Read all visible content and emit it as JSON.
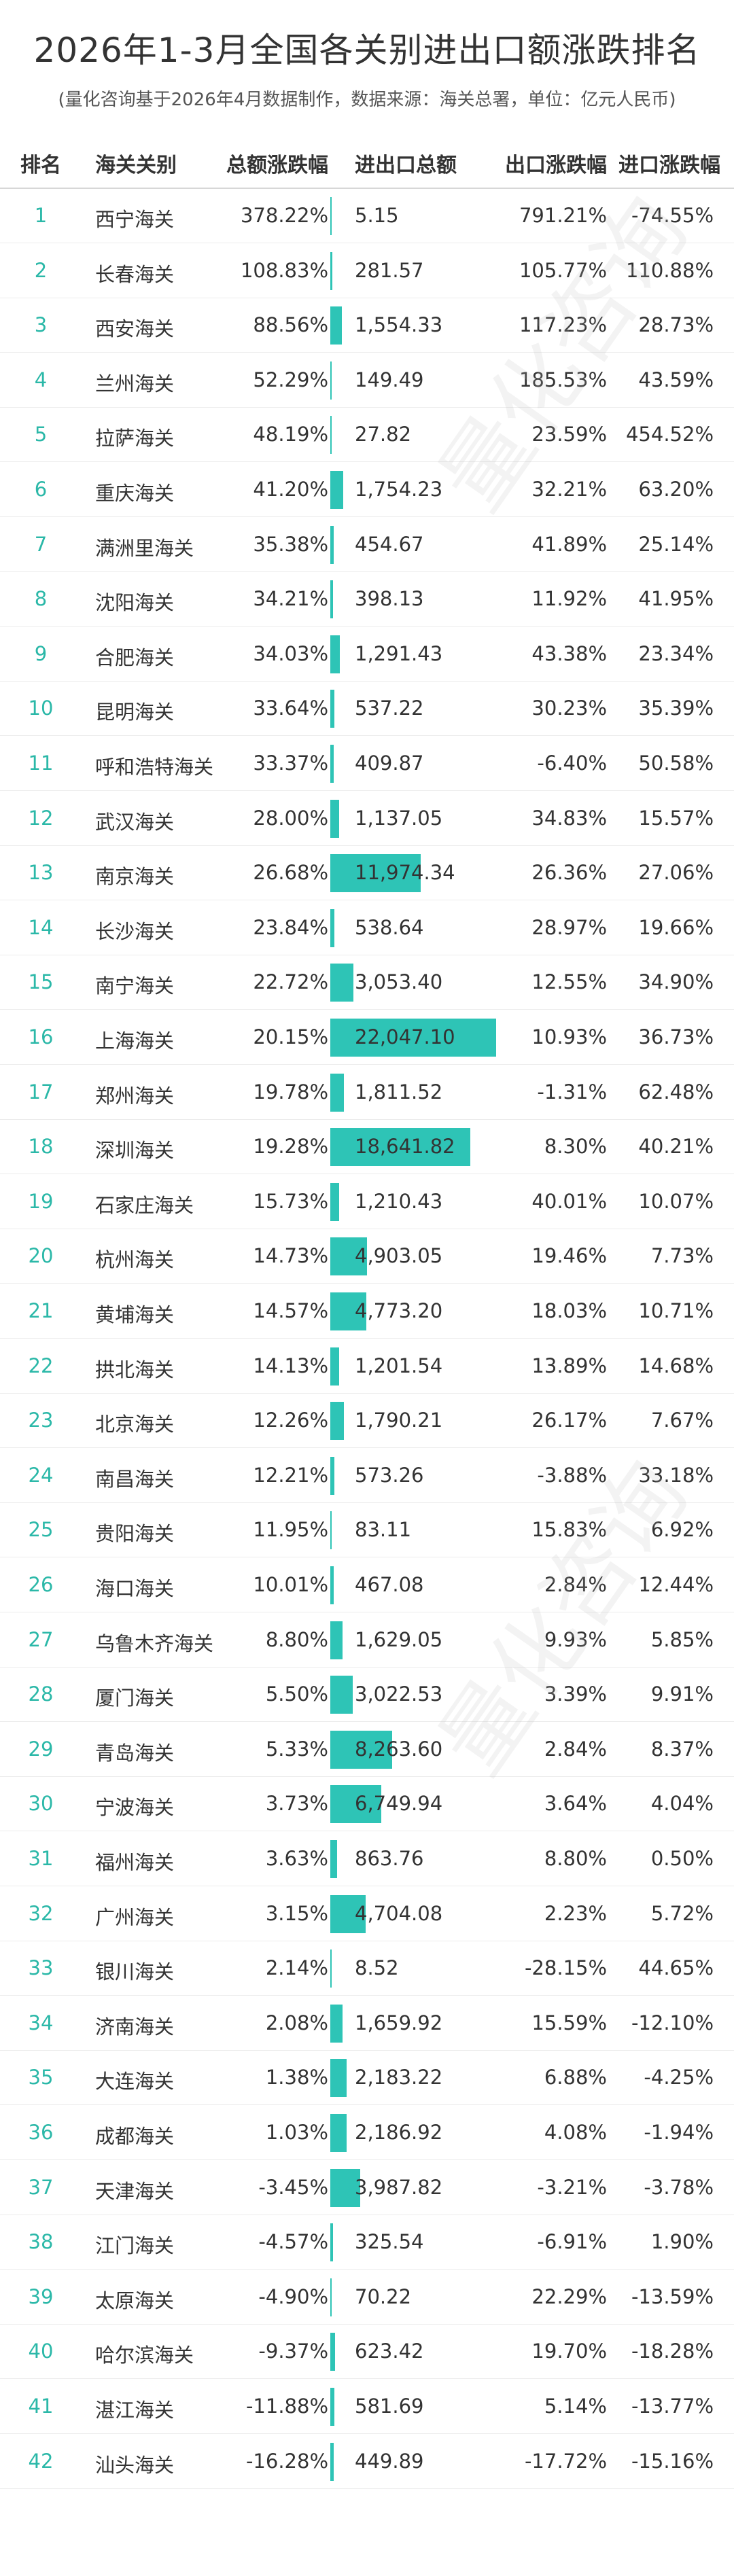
{
  "title": "2026年1-3月全国各关别进出口额涨跌排名",
  "subtitle": "(量化咨询基于2026年4月数据制作，数据来源：海关总署，单位：亿元人民币)",
  "watermark": "量化咨询",
  "colors": {
    "accent": "#2ec4b6",
    "rank": "#2bb8a8"
  },
  "chart_data": {
    "type": "table",
    "columns": [
      "排名",
      "海关关别",
      "总额涨跌幅",
      "进出口总额",
      "出口涨跌幅",
      "进口涨跌幅"
    ],
    "rows": [
      {
        "rank": "1",
        "customs": "西宁海关",
        "total_change": "378.22%",
        "trade_total": "5.15",
        "trade_value": 5.15,
        "export_change": "791.21%",
        "import_change": "-74.55%"
      },
      {
        "rank": "2",
        "customs": "长春海关",
        "total_change": "108.83%",
        "trade_total": "281.57",
        "trade_value": 281.57,
        "export_change": "105.77%",
        "import_change": "110.88%"
      },
      {
        "rank": "3",
        "customs": "西安海关",
        "total_change": "88.56%",
        "trade_total": "1,554.33",
        "trade_value": 1554.33,
        "export_change": "117.23%",
        "import_change": "28.73%"
      },
      {
        "rank": "4",
        "customs": "兰州海关",
        "total_change": "52.29%",
        "trade_total": "149.49",
        "trade_value": 149.49,
        "export_change": "185.53%",
        "import_change": "43.59%"
      },
      {
        "rank": "5",
        "customs": "拉萨海关",
        "total_change": "48.19%",
        "trade_total": "27.82",
        "trade_value": 27.82,
        "export_change": "23.59%",
        "import_change": "454.52%"
      },
      {
        "rank": "6",
        "customs": "重庆海关",
        "total_change": "41.20%",
        "trade_total": "1,754.23",
        "trade_value": 1754.23,
        "export_change": "32.21%",
        "import_change": "63.20%"
      },
      {
        "rank": "7",
        "customs": "满洲里海关",
        "total_change": "35.38%",
        "trade_total": "454.67",
        "trade_value": 454.67,
        "export_change": "41.89%",
        "import_change": "25.14%"
      },
      {
        "rank": "8",
        "customs": "沈阳海关",
        "total_change": "34.21%",
        "trade_total": "398.13",
        "trade_value": 398.13,
        "export_change": "11.92%",
        "import_change": "41.95%"
      },
      {
        "rank": "9",
        "customs": "合肥海关",
        "total_change": "34.03%",
        "trade_total": "1,291.43",
        "trade_value": 1291.43,
        "export_change": "43.38%",
        "import_change": "23.34%"
      },
      {
        "rank": "10",
        "customs": "昆明海关",
        "total_change": "33.64%",
        "trade_total": "537.22",
        "trade_value": 537.22,
        "export_change": "30.23%",
        "import_change": "35.39%"
      },
      {
        "rank": "11",
        "customs": "呼和浩特海关",
        "total_change": "33.37%",
        "trade_total": "409.87",
        "trade_value": 409.87,
        "export_change": "-6.40%",
        "import_change": "50.58%"
      },
      {
        "rank": "12",
        "customs": "武汉海关",
        "total_change": "28.00%",
        "trade_total": "1,137.05",
        "trade_value": 1137.05,
        "export_change": "34.83%",
        "import_change": "15.57%"
      },
      {
        "rank": "13",
        "customs": "南京海关",
        "total_change": "26.68%",
        "trade_total": "11,974.34",
        "trade_value": 11974.34,
        "export_change": "26.36%",
        "import_change": "27.06%"
      },
      {
        "rank": "14",
        "customs": "长沙海关",
        "total_change": "23.84%",
        "trade_total": "538.64",
        "trade_value": 538.64,
        "export_change": "28.97%",
        "import_change": "19.66%"
      },
      {
        "rank": "15",
        "customs": "南宁海关",
        "total_change": "22.72%",
        "trade_total": "3,053.40",
        "trade_value": 3053.4,
        "export_change": "12.55%",
        "import_change": "34.90%"
      },
      {
        "rank": "16",
        "customs": "上海海关",
        "total_change": "20.15%",
        "trade_total": "22,047.10",
        "trade_value": 22047.1,
        "export_change": "10.93%",
        "import_change": "36.73%"
      },
      {
        "rank": "17",
        "customs": "郑州海关",
        "total_change": "19.78%",
        "trade_total": "1,811.52",
        "trade_value": 1811.52,
        "export_change": "-1.31%",
        "import_change": "62.48%"
      },
      {
        "rank": "18",
        "customs": "深圳海关",
        "total_change": "19.28%",
        "trade_total": "18,641.82",
        "trade_value": 18641.82,
        "export_change": "8.30%",
        "import_change": "40.21%"
      },
      {
        "rank": "19",
        "customs": "石家庄海关",
        "total_change": "15.73%",
        "trade_total": "1,210.43",
        "trade_value": 1210.43,
        "export_change": "40.01%",
        "import_change": "10.07%"
      },
      {
        "rank": "20",
        "customs": "杭州海关",
        "total_change": "14.73%",
        "trade_total": "4,903.05",
        "trade_value": 4903.05,
        "export_change": "19.46%",
        "import_change": "7.73%"
      },
      {
        "rank": "21",
        "customs": "黄埔海关",
        "total_change": "14.57%",
        "trade_total": "4,773.20",
        "trade_value": 4773.2,
        "export_change": "18.03%",
        "import_change": "10.71%"
      },
      {
        "rank": "22",
        "customs": "拱北海关",
        "total_change": "14.13%",
        "trade_total": "1,201.54",
        "trade_value": 1201.54,
        "export_change": "13.89%",
        "import_change": "14.68%"
      },
      {
        "rank": "23",
        "customs": "北京海关",
        "total_change": "12.26%",
        "trade_total": "1,790.21",
        "trade_value": 1790.21,
        "export_change": "26.17%",
        "import_change": "7.67%"
      },
      {
        "rank": "24",
        "customs": "南昌海关",
        "total_change": "12.21%",
        "trade_total": "573.26",
        "trade_value": 573.26,
        "export_change": "-3.88%",
        "import_change": "33.18%"
      },
      {
        "rank": "25",
        "customs": "贵阳海关",
        "total_change": "11.95%",
        "trade_total": "83.11",
        "trade_value": 83.11,
        "export_change": "15.83%",
        "import_change": "6.92%"
      },
      {
        "rank": "26",
        "customs": "海口海关",
        "total_change": "10.01%",
        "trade_total": "467.08",
        "trade_value": 467.08,
        "export_change": "2.84%",
        "import_change": "12.44%"
      },
      {
        "rank": "27",
        "customs": "乌鲁木齐海关",
        "total_change": "8.80%",
        "trade_total": "1,629.05",
        "trade_value": 1629.05,
        "export_change": "9.93%",
        "import_change": "5.85%"
      },
      {
        "rank": "28",
        "customs": "厦门海关",
        "total_change": "5.50%",
        "trade_total": "3,022.53",
        "trade_value": 3022.53,
        "export_change": "3.39%",
        "import_change": "9.91%"
      },
      {
        "rank": "29",
        "customs": "青岛海关",
        "total_change": "5.33%",
        "trade_total": "8,263.60",
        "trade_value": 8263.6,
        "export_change": "2.84%",
        "import_change": "8.37%"
      },
      {
        "rank": "30",
        "customs": "宁波海关",
        "total_change": "3.73%",
        "trade_total": "6,749.94",
        "trade_value": 6749.94,
        "export_change": "3.64%",
        "import_change": "4.04%"
      },
      {
        "rank": "31",
        "customs": "福州海关",
        "total_change": "3.63%",
        "trade_total": "863.76",
        "trade_value": 863.76,
        "export_change": "8.80%",
        "import_change": "0.50%"
      },
      {
        "rank": "32",
        "customs": "广州海关",
        "total_change": "3.15%",
        "trade_total": "4,704.08",
        "trade_value": 4704.08,
        "export_change": "2.23%",
        "import_change": "5.72%"
      },
      {
        "rank": "33",
        "customs": "银川海关",
        "total_change": "2.14%",
        "trade_total": "8.52",
        "trade_value": 8.52,
        "export_change": "-28.15%",
        "import_change": "44.65%"
      },
      {
        "rank": "34",
        "customs": "济南海关",
        "total_change": "2.08%",
        "trade_total": "1,659.92",
        "trade_value": 1659.92,
        "export_change": "15.59%",
        "import_change": "-12.10%"
      },
      {
        "rank": "35",
        "customs": "大连海关",
        "total_change": "1.38%",
        "trade_total": "2,183.22",
        "trade_value": 2183.22,
        "export_change": "6.88%",
        "import_change": "-4.25%"
      },
      {
        "rank": "36",
        "customs": "成都海关",
        "total_change": "1.03%",
        "trade_total": "2,186.92",
        "trade_value": 2186.92,
        "export_change": "4.08%",
        "import_change": "-1.94%"
      },
      {
        "rank": "37",
        "customs": "天津海关",
        "total_change": "-3.45%",
        "trade_total": "3,987.82",
        "trade_value": 3987.82,
        "export_change": "-3.21%",
        "import_change": "-3.78%"
      },
      {
        "rank": "38",
        "customs": "江门海关",
        "total_change": "-4.57%",
        "trade_total": "325.54",
        "trade_value": 325.54,
        "export_change": "-6.91%",
        "import_change": "1.90%"
      },
      {
        "rank": "39",
        "customs": "太原海关",
        "total_change": "-4.90%",
        "trade_total": "70.22",
        "trade_value": 70.22,
        "export_change": "22.29%",
        "import_change": "-13.59%"
      },
      {
        "rank": "40",
        "customs": "哈尔滨海关",
        "total_change": "-9.37%",
        "trade_total": "623.42",
        "trade_value": 623.42,
        "export_change": "19.70%",
        "import_change": "-18.28%"
      },
      {
        "rank": "41",
        "customs": "湛江海关",
        "total_change": "-11.88%",
        "trade_total": "581.69",
        "trade_value": 581.69,
        "export_change": "5.14%",
        "import_change": "-13.77%"
      },
      {
        "rank": "42",
        "customs": "汕头海关",
        "total_change": "-16.28%",
        "trade_total": "449.89",
        "trade_value": 449.89,
        "export_change": "-17.72%",
        "import_change": "-15.16%"
      }
    ]
  }
}
